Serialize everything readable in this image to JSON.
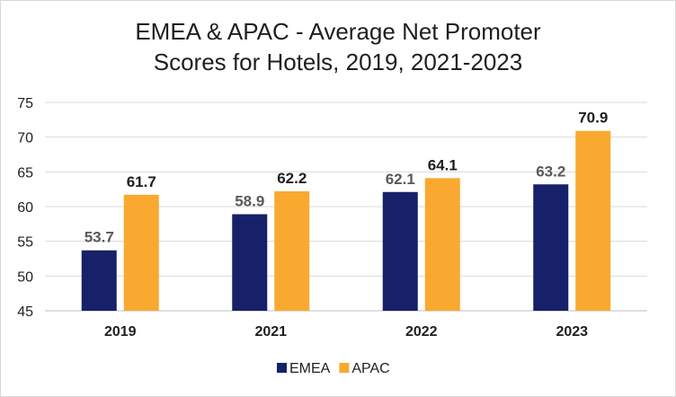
{
  "chart_data": {
    "type": "bar",
    "title_lines": [
      "EMEA & APAC - Average Net Promoter",
      "Scores for Hotels, 2019, 2021-2023"
    ],
    "categories": [
      "2019",
      "2021",
      "2022",
      "2023"
    ],
    "series": [
      {
        "name": "EMEA",
        "values": [
          53.7,
          58.9,
          62.1,
          63.2
        ],
        "color": "#16216a",
        "label_color": "#595959"
      },
      {
        "name": "APAC",
        "values": [
          61.7,
          62.2,
          64.1,
          70.9
        ],
        "color": "#f9a92f",
        "label_color": "#1f1f1f"
      }
    ],
    "ylim": [
      45,
      75
    ],
    "yticks": [
      "45",
      "50",
      "55",
      "60",
      "65",
      "70",
      "75"
    ],
    "grid": true,
    "legend_position": "bottom"
  }
}
